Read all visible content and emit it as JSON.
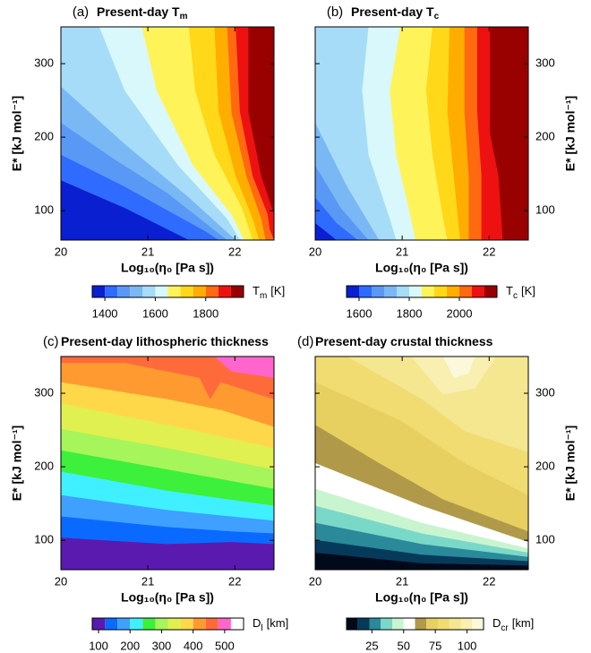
{
  "chart_data": [
    {
      "type": "contour",
      "panel_label": "(a)",
      "title": "Present-day T",
      "title_sub": "m",
      "xlabel": "Log₁₀(η₀ [Pa s])",
      "ylabel": "E* [kJ mol⁻¹]",
      "yaxis_side": "left",
      "xlim": [
        20,
        22.45
      ],
      "ylim": [
        60,
        350
      ],
      "xticks": [
        20,
        21,
        22
      ],
      "yticks": [
        100,
        200,
        300
      ],
      "colorbar": {
        "label": "T",
        "label_sub": "m",
        "unit": "[K]",
        "levels": [
          1350,
          1400,
          1450,
          1500,
          1550,
          1600,
          1650,
          1700,
          1750,
          1800,
          1850,
          1900,
          1950
        ],
        "colors": [
          "#0a1fd0",
          "#2f6bff",
          "#5a98f5",
          "#7ab8f5",
          "#a6dcf7",
          "#d8f8fb",
          "#fff35a",
          "#ffd81a",
          "#ffae00",
          "#ff6a10",
          "#ee1111",
          "#990000"
        ],
        "ticks": [
          1400,
          1600,
          1800
        ]
      }
    },
    {
      "type": "contour",
      "panel_label": "(b)",
      "title": "Present-day T",
      "title_sub": "c",
      "xlabel": "Log₁₀(η₀ [Pa s])",
      "ylabel": "E* [kJ mol⁻¹]",
      "yaxis_side": "right",
      "xlim": [
        20,
        22.45
      ],
      "ylim": [
        60,
        350
      ],
      "xticks": [
        20,
        21,
        22
      ],
      "yticks": [
        100,
        200,
        300
      ],
      "colorbar": {
        "label": "T",
        "label_sub": "c",
        "unit": "[K]",
        "levels": [
          1550,
          1600,
          1650,
          1700,
          1750,
          1800,
          1850,
          1900,
          1950,
          2000,
          2050,
          2100,
          2150
        ],
        "colors": [
          "#0a1fd0",
          "#2f6bff",
          "#5a98f5",
          "#7ab8f5",
          "#a6dcf7",
          "#d8f8fb",
          "#fff35a",
          "#ffd81a",
          "#ffae00",
          "#ff6a10",
          "#ee1111",
          "#990000"
        ],
        "ticks": [
          1600,
          1800,
          2000
        ]
      }
    },
    {
      "type": "contour",
      "panel_label": "(c)",
      "title": "Present-day lithospheric thickness",
      "xlabel": "Log₁₀(η₀ [Pa s])",
      "ylabel": "E* [kJ mol⁻¹]",
      "yaxis_side": "left",
      "xlim": [
        20,
        22.45
      ],
      "ylim": [
        60,
        350
      ],
      "xticks": [
        20,
        21,
        22
      ],
      "yticks": [
        100,
        200,
        300
      ],
      "colorbar": {
        "label": "D",
        "label_sub": "l",
        "unit": "[km]",
        "levels": [
          80,
          120,
          160,
          200,
          240,
          280,
          320,
          360,
          400,
          440,
          480,
          520,
          560
        ],
        "colors": [
          "#5a1ab0",
          "#0a6aff",
          "#3fa0ff",
          "#40f0ff",
          "#3cf03c",
          "#a6f55a",
          "#e0f050",
          "#ffd84a",
          "#ff9a30",
          "#ff6a3a",
          "#ff66cc",
          "#ffffff"
        ],
        "ticks": [
          100,
          200,
          300,
          400,
          500
        ]
      }
    },
    {
      "type": "contour",
      "panel_label": "(d)",
      "title": "Present-day crustal thickness",
      "xlabel": "Log₁₀(η₀ [Pa s])",
      "ylabel": "E* [kJ mol⁻¹]",
      "yaxis_side": "right",
      "xlim": [
        20,
        22.45
      ],
      "ylim": [
        60,
        350
      ],
      "xticks": [
        20,
        21,
        22
      ],
      "yticks": [
        100,
        200,
        300
      ],
      "colorbar": {
        "label": "D",
        "label_sub": "cr",
        "unit": "[km]",
        "levels": [
          5,
          14,
          23,
          32,
          41,
          50,
          59,
          68,
          77,
          86,
          95,
          104,
          113
        ],
        "colors": [
          "#000a1a",
          "#063a5a",
          "#2a8a9a",
          "#7ad8c8",
          "#c8f5d0",
          "#ffffff",
          "#b09a4a",
          "#e8d060",
          "#f0dc70",
          "#f5e690",
          "#f8efb0",
          "#fcf8dc"
        ],
        "ticks": [
          25,
          50,
          75,
          100
        ]
      }
    }
  ]
}
